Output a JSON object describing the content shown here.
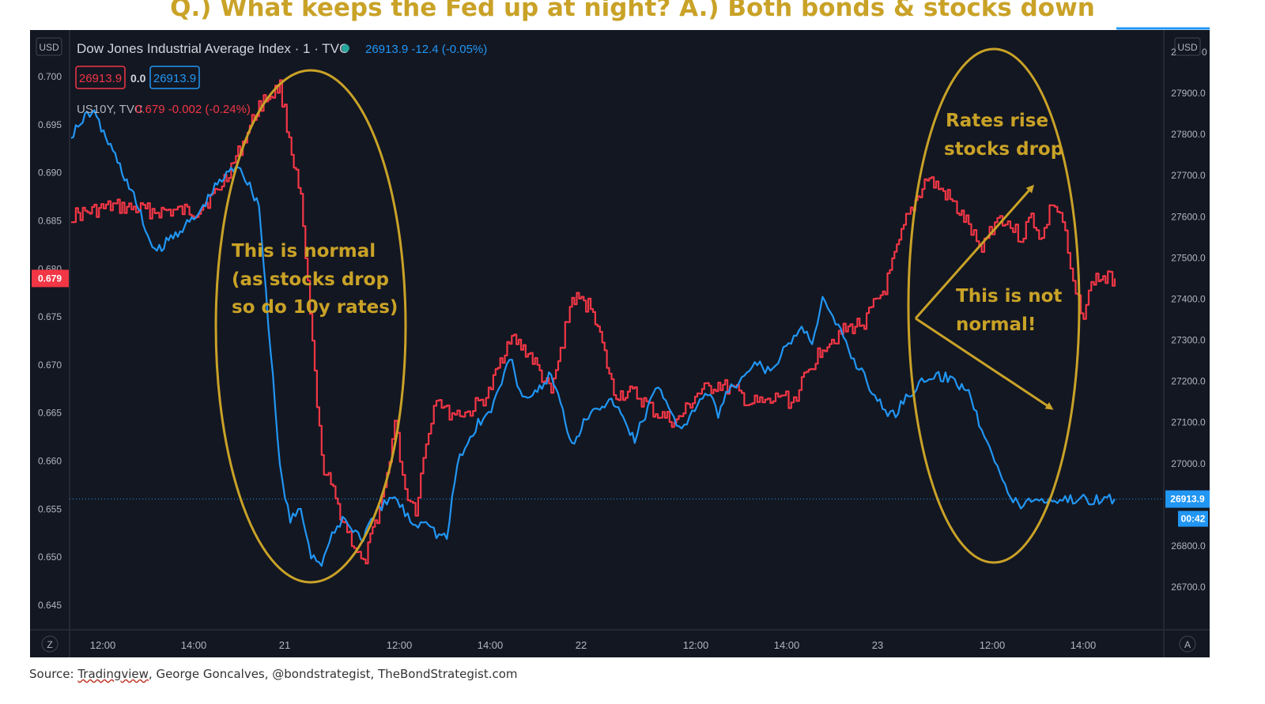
{
  "headline": "Q.) What keeps the Fed up at night? A.) Both bonds & stocks down",
  "footer": {
    "prefix": "Source: ",
    "link": "Tradingview",
    "rest": ", George Goncalves, @bondstrategist, TheBondStrategist.com"
  },
  "header": {
    "left_unit": "USD",
    "right_unit": "USD",
    "main_symbol": "Dow Jones Industrial Average Index · 1 · TVC",
    "main_quote": "26913.9  -12.4 (-0.05%)",
    "ohlc_red": "26913.9",
    "ohlc_mid": "0.0",
    "ohlc_blue": "26913.9",
    "second_symbol": "US10Y, TVC",
    "second_quote": "0.679  -0.002 (-0.24%)",
    "left_price_tag": "0.679",
    "right_price_tag": "26913.9",
    "right_countdown": "00:42",
    "corner_left": "Z",
    "corner_right": "A",
    "top_right_stub": "2",
    "top_right_stub2": "0"
  },
  "colors": {
    "background": "#131722",
    "red_series": "#F23645",
    "blue_series": "#2196F3",
    "annotation": "#C9A227",
    "axis_text": "#B2B5BE"
  },
  "annotations": {
    "left_note": [
      "This is normal",
      "(as stocks drop",
      "so do 10y rates)"
    ],
    "right_note_top": [
      "Rates rise",
      "stocks drop"
    ],
    "right_note_mid": [
      "This is not",
      "normal!"
    ]
  },
  "chart_data": {
    "type": "line",
    "x_axis": {
      "ticks": [
        "12:00",
        "14:00",
        "21",
        "12:00",
        "14:00",
        "22",
        "12:00",
        "14:00",
        "23",
        "12:00",
        "14:00"
      ],
      "domain": [
        0,
        100
      ]
    },
    "y_left": {
      "ticks": [
        "0.700",
        "0.695",
        "0.690",
        "0.685",
        "0.680",
        "0.675",
        "0.670",
        "0.665",
        "0.660",
        "0.655",
        "0.650",
        "0.645"
      ],
      "range": [
        0.6435,
        0.7022
      ]
    },
    "y_right": {
      "ticks": [
        "27900.0",
        "27800.0",
        "27700.0",
        "27600.0",
        "27500.0",
        "27400.0",
        "27300.0",
        "27200.0",
        "27100.0",
        "27000.0",
        "26800.0",
        "26700.0"
      ],
      "range": [
        26630,
        27930
      ]
    },
    "series": [
      {
        "name": "US10Y, TVC",
        "axis": "left",
        "color": "#F23645",
        "x": [
          0,
          4,
          8,
          12,
          14,
          16,
          18,
          20,
          22,
          24,
          26,
          28,
          30,
          31,
          32,
          33,
          34,
          35,
          36,
          37,
          38,
          39,
          40,
          42,
          44,
          46,
          48,
          50,
          52,
          54,
          56,
          58,
          60,
          62,
          64,
          65,
          66,
          67,
          68,
          69,
          70,
          72,
          74,
          76,
          78,
          80,
          82,
          84,
          86,
          87,
          88,
          89,
          90,
          91,
          92,
          93,
          94,
          95,
          96,
          97,
          98,
          100
        ],
        "y": [
          0.6855,
          0.6865,
          0.686,
          0.686,
          0.688,
          0.692,
          0.697,
          0.699,
          0.687,
          0.66,
          0.654,
          0.649,
          0.657,
          0.664,
          0.657,
          0.655,
          0.662,
          0.667,
          0.665,
          0.665,
          0.665,
          0.666,
          0.667,
          0.673,
          0.671,
          0.667,
          0.677,
          0.676,
          0.667,
          0.667,
          0.665,
          0.664,
          0.667,
          0.668,
          0.667,
          0.666,
          0.666,
          0.666,
          0.667,
          0.666,
          0.668,
          0.672,
          0.6735,
          0.6745,
          0.678,
          0.685,
          0.6895,
          0.6875,
          0.6845,
          0.682,
          0.684,
          0.6855,
          0.6845,
          0.6832,
          0.6855,
          0.683,
          0.687,
          0.685,
          0.678,
          0.6755,
          0.679,
          0.679
        ]
      },
      {
        "name": "Dow Jones Industrial Average Index · 1 · TVC",
        "axis": "right",
        "color": "#2196F3",
        "x": [
          0,
          2,
          4,
          6,
          8,
          10,
          12,
          14,
          16,
          18,
          20,
          21,
          22,
          23,
          24,
          25,
          26,
          27,
          28,
          29,
          30,
          31,
          32,
          33,
          34,
          35,
          36,
          37,
          38,
          39,
          40,
          41,
          42,
          43,
          44,
          46,
          48,
          50,
          52,
          54,
          55,
          56,
          57,
          58,
          59,
          60,
          61,
          62,
          63,
          64,
          65,
          66,
          67,
          68,
          69,
          70,
          71,
          72,
          73,
          74,
          75,
          76,
          77,
          78,
          79,
          80,
          81,
          82,
          84,
          86,
          87,
          88,
          89,
          90,
          91,
          92,
          93,
          94,
          95,
          96,
          97,
          98,
          99,
          100
        ],
        "y": [
          27800,
          27860,
          27760,
          27650,
          27510,
          27560,
          27600,
          27680,
          27730,
          27630,
          26990,
          26860,
          26890,
          26780,
          26760,
          26820,
          26870,
          26840,
          26820,
          26870,
          26900,
          26920,
          26880,
          26850,
          26870,
          26830,
          26820,
          27000,
          27050,
          27100,
          27120,
          27180,
          27260,
          27180,
          27150,
          27220,
          27050,
          27140,
          27150,
          27060,
          27120,
          27180,
          27160,
          27100,
          27090,
          27150,
          27170,
          27120,
          27180,
          27190,
          27230,
          27240,
          27220,
          27260,
          27300,
          27330,
          27300,
          27400,
          27350,
          27310,
          27250,
          27220,
          27160,
          27130,
          27120,
          27170,
          27180,
          27210,
          27210,
          27180,
          27100,
          27050,
          26980,
          26913.9,
          26900,
          26913.9,
          26913.9,
          26913.9,
          26913.9,
          26913.9,
          26913.9,
          26913.9,
          26913.9,
          26913.9
        ]
      }
    ]
  }
}
